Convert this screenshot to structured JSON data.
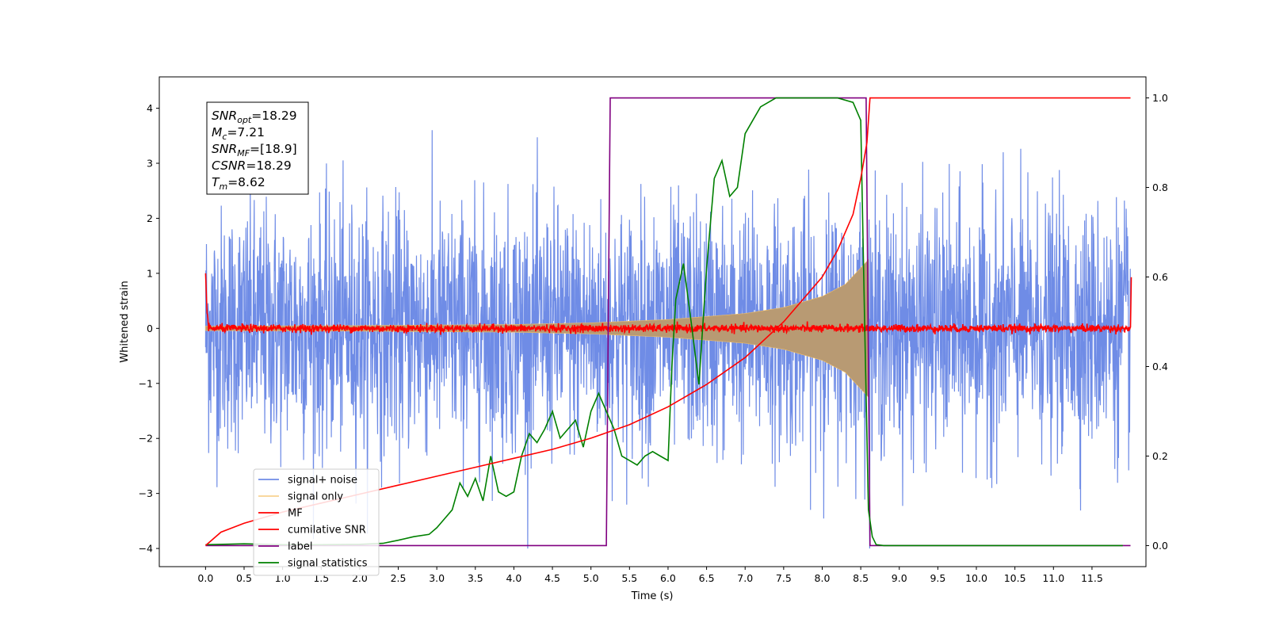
{
  "chart_data": {
    "type": "line",
    "xlabel": "Time (s)",
    "ylabel": "Whitened strain",
    "xlim": [
      -0.6,
      12.2
    ],
    "ylim": [
      -4.33,
      4.57
    ],
    "y2lim": [
      -0.047,
      1.047
    ],
    "x_ticks": [
      "0.0",
      "0.5",
      "1.0",
      "1.5",
      "2.0",
      "2.5",
      "3.0",
      "3.5",
      "4.0",
      "4.5",
      "5.0",
      "5.5",
      "6.0",
      "6.5",
      "7.0",
      "7.5",
      "8.0",
      "8.5",
      "9.0",
      "9.5",
      "10.0",
      "10.5",
      "11.0",
      "11.5"
    ],
    "y_ticks": [
      "4",
      "3",
      "2",
      "1",
      "0",
      "−1",
      "−2",
      "−3",
      "−4"
    ],
    "y2_ticks": [
      "1.0",
      "0.8",
      "0.6",
      "0.4",
      "0.2",
      "0.0"
    ],
    "legend_position": "lower-left",
    "stats": [
      {
        "base": "SNR",
        "sub": "opt",
        "value": "=18.29"
      },
      {
        "base": "M",
        "sub": "c",
        "value": "=7.21"
      },
      {
        "base": "SNR",
        "sub": "MF",
        "value": "=[18.9]"
      },
      {
        "base": "CSNR",
        "sub": "",
        "value": "=18.29"
      },
      {
        "base": "T",
        "sub": "m",
        "value": "=8.62"
      }
    ],
    "colors": {
      "noise": "#6f8ce6",
      "signal": "#f5bf62",
      "signal_fill": "#b89a73",
      "mf": "#ff0000",
      "csnr": "#ff0000",
      "label": "#800080",
      "stat": "#008000"
    },
    "series": [
      {
        "name": "signal+ noise",
        "key": "noise",
        "axis": "left",
        "amplitude": 1.1,
        "x": [
          0.0,
          12.0
        ]
      },
      {
        "name": "signal only",
        "key": "signal",
        "axis": "left",
        "x": [
          0.0,
          2.0,
          4.0,
          5.0,
          6.0,
          7.0,
          7.5,
          8.0,
          8.3,
          8.5,
          8.6
        ],
        "envelope": [
          0.04,
          0.05,
          0.07,
          0.1,
          0.16,
          0.27,
          0.38,
          0.58,
          0.8,
          1.1,
          1.25
        ]
      },
      {
        "name": "MF",
        "key": "mf",
        "axis": "left",
        "x": [
          0.0,
          0.02,
          12.0,
          12.01
        ],
        "y": [
          1.0,
          0.0,
          0.0,
          0.93
        ]
      },
      {
        "name": "cumilative SNR",
        "key": "csnr",
        "axis": "right",
        "x": [
          0.0,
          0.2,
          0.5,
          1.0,
          1.5,
          2.0,
          2.5,
          3.0,
          3.5,
          4.0,
          4.5,
          5.0,
          5.5,
          6.0,
          6.5,
          7.0,
          7.5,
          8.0,
          8.2,
          8.4,
          8.5,
          8.58,
          8.62,
          12.0
        ],
        "y": [
          0.0,
          0.03,
          0.05,
          0.075,
          0.095,
          0.115,
          0.135,
          0.155,
          0.175,
          0.195,
          0.215,
          0.24,
          0.27,
          0.31,
          0.36,
          0.42,
          0.5,
          0.6,
          0.66,
          0.74,
          0.82,
          0.9,
          1.0,
          1.0
        ]
      },
      {
        "name": "label",
        "key": "label",
        "axis": "right",
        "x": [
          0.0,
          5.2,
          5.25,
          8.57,
          8.62,
          12.0
        ],
        "y": [
          0.0,
          0.0,
          1.0,
          1.0,
          0.0,
          0.0
        ]
      },
      {
        "name": "signal statistics",
        "key": "stat",
        "axis": "right",
        "x": [
          0.0,
          0.5,
          1.0,
          1.5,
          2.0,
          2.3,
          2.5,
          2.7,
          2.9,
          3.0,
          3.1,
          3.2,
          3.3,
          3.4,
          3.5,
          3.6,
          3.7,
          3.8,
          3.9,
          4.0,
          4.1,
          4.2,
          4.3,
          4.4,
          4.5,
          4.6,
          4.7,
          4.8,
          4.9,
          5.0,
          5.1,
          5.2,
          5.3,
          5.4,
          5.5,
          5.6,
          5.7,
          5.8,
          5.9,
          6.0,
          6.05,
          6.1,
          6.2,
          6.3,
          6.4,
          6.5,
          6.6,
          6.7,
          6.8,
          6.9,
          7.0,
          7.1,
          7.2,
          7.3,
          7.4,
          7.5,
          7.6,
          7.8,
          8.0,
          8.2,
          8.4,
          8.5,
          8.55,
          8.6,
          8.65,
          8.7,
          8.8,
          9.0,
          10.0,
          11.0,
          11.9
        ],
        "y": [
          0.002,
          0.004,
          0.002,
          0.002,
          0.003,
          0.005,
          0.012,
          0.02,
          0.025,
          0.04,
          0.06,
          0.08,
          0.14,
          0.11,
          0.15,
          0.1,
          0.2,
          0.12,
          0.11,
          0.12,
          0.2,
          0.25,
          0.23,
          0.26,
          0.3,
          0.24,
          0.26,
          0.28,
          0.22,
          0.3,
          0.34,
          0.3,
          0.26,
          0.2,
          0.19,
          0.18,
          0.2,
          0.21,
          0.2,
          0.19,
          0.4,
          0.55,
          0.63,
          0.5,
          0.36,
          0.62,
          0.82,
          0.86,
          0.78,
          0.8,
          0.92,
          0.95,
          0.98,
          0.99,
          1.0,
          1.0,
          1.0,
          1.0,
          1.0,
          1.0,
          0.99,
          0.95,
          0.5,
          0.08,
          0.02,
          0.002,
          0.0,
          0.0,
          0.0,
          0.0,
          0.0
        ]
      }
    ]
  }
}
